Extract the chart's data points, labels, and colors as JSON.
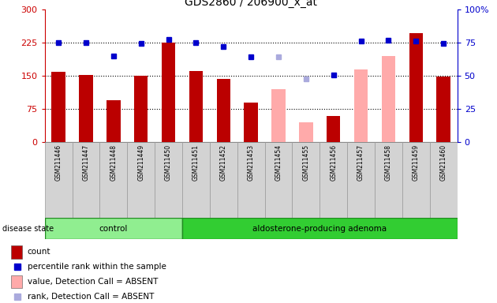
{
  "title": "GDS2860 / 206900_x_at",
  "samples": [
    "GSM211446",
    "GSM211447",
    "GSM211448",
    "GSM211449",
    "GSM211450",
    "GSM211451",
    "GSM211452",
    "GSM211453",
    "GSM211454",
    "GSM211455",
    "GSM211456",
    "GSM211457",
    "GSM211458",
    "GSM211459",
    "GSM211460"
  ],
  "n_control": 5,
  "group_labels": [
    "control",
    "aldosterone-producing adenoma"
  ],
  "count_values": [
    158,
    152,
    95,
    150,
    225,
    160,
    143,
    90,
    120,
    45,
    60,
    165,
    195,
    245,
    148
  ],
  "count_absent": [
    false,
    false,
    false,
    false,
    false,
    false,
    false,
    false,
    true,
    true,
    false,
    true,
    true,
    false,
    false
  ],
  "rank_values": [
    225,
    225,
    195,
    222,
    232,
    225,
    215,
    193,
    193,
    143,
    152,
    228,
    230,
    228,
    222
  ],
  "rank_absent": [
    false,
    false,
    false,
    false,
    false,
    false,
    false,
    false,
    true,
    true,
    false,
    false,
    false,
    false,
    false
  ],
  "bar_color_present": "#BB0000",
  "bar_color_absent": "#FFAAAA",
  "rank_color_present": "#0000CC",
  "rank_color_absent": "#AAAADD",
  "yticks_left": [
    0,
    75,
    150,
    225,
    300
  ],
  "yticks_right": [
    0,
    25,
    50,
    75,
    100
  ],
  "legend_items": [
    {
      "label": "count",
      "color": "#BB0000",
      "type": "bar"
    },
    {
      "label": "percentile rank within the sample",
      "color": "#0000CC",
      "type": "square"
    },
    {
      "label": "value, Detection Call = ABSENT",
      "color": "#FFAAAA",
      "type": "bar"
    },
    {
      "label": "rank, Detection Call = ABSENT",
      "color": "#AAAADD",
      "type": "square"
    }
  ]
}
